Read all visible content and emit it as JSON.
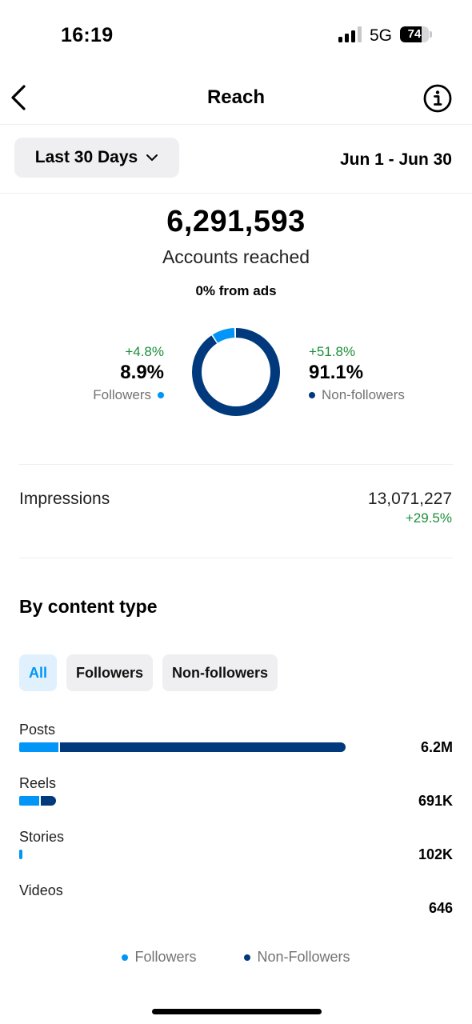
{
  "status_bar": {
    "time": "16:19",
    "network": "5G",
    "battery_percent": "74",
    "signal_bars_active": 3,
    "signal_bars_total": 4
  },
  "header": {
    "title": "Reach",
    "back_icon": "chevron-left-icon",
    "info_icon": "info-icon"
  },
  "filters": {
    "range_label": "Last 30 Days",
    "date_range": "Jun 1 - Jun 30"
  },
  "summary": {
    "accounts_reached": "6,291,593",
    "accounts_reached_label": "Accounts reached",
    "ads_label": "0% from ads",
    "followers": {
      "change": "+4.8%",
      "percent": "8.9%",
      "label": "Followers",
      "share": 0.089
    },
    "non_followers": {
      "change": "+51.8%",
      "percent": "91.1%",
      "label": "Non-followers",
      "share": 0.911
    }
  },
  "impressions": {
    "label": "Impressions",
    "value": "13,071,227",
    "change": "+29.5%"
  },
  "content_type": {
    "title": "By content type",
    "tabs": [
      {
        "label": "All",
        "active": true
      },
      {
        "label": "Followers",
        "active": false
      },
      {
        "label": "Non-followers",
        "active": false
      }
    ],
    "rows": [
      {
        "label": "Posts",
        "value": "6.2M",
        "followers_fraction": 0.09,
        "non_followers_fraction": 0.66
      },
      {
        "label": "Reels",
        "value": "691K",
        "followers_fraction": 0.046,
        "non_followers_fraction": 0.036
      },
      {
        "label": "Stories",
        "value": "102K",
        "followers_fraction": 0.008,
        "non_followers_fraction": 0
      },
      {
        "label": "Videos",
        "value": "646",
        "followers_fraction": 0,
        "non_followers_fraction": 0
      }
    ],
    "legend": [
      {
        "label": "Followers"
      },
      {
        "label": "Non-Followers"
      }
    ]
  },
  "colors": {
    "followers": "#0095f6",
    "non_followers": "#003a7c",
    "positive": "#1c8f3b"
  }
}
